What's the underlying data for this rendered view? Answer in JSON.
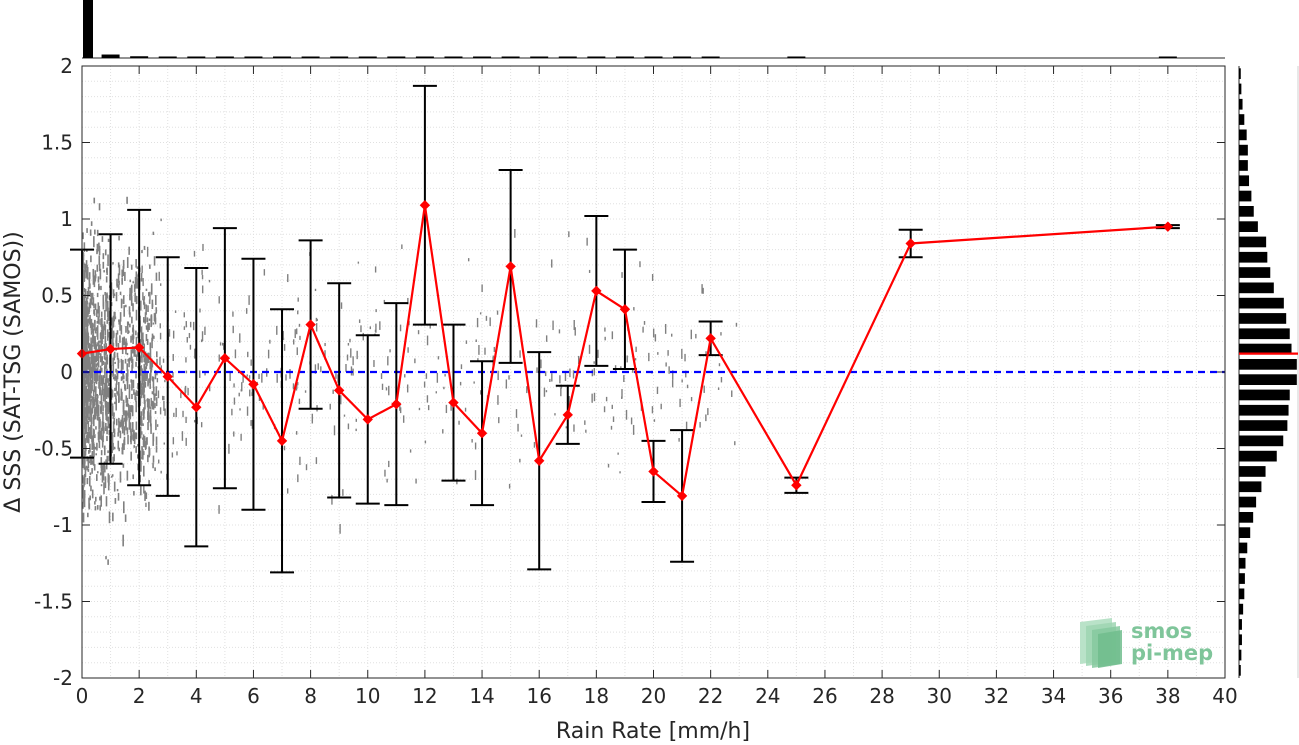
{
  "chart_data": {
    "type": "scatter",
    "xlabel": "Rain Rate [mm/h]",
    "ylabel": "Δ SSS (SAT-TSG (SAMOS))",
    "xlim": [
      0,
      40
    ],
    "ylim": [
      -2,
      2
    ],
    "x_ticks": [
      0,
      2,
      4,
      6,
      8,
      10,
      12,
      14,
      16,
      18,
      20,
      22,
      24,
      26,
      28,
      30,
      32,
      34,
      36,
      38,
      40
    ],
    "y_ticks": [
      -2,
      -1.5,
      -1,
      -0.5,
      0,
      0.5,
      1,
      1.5,
      2
    ],
    "y_tick_labels": [
      "-2",
      "-1.5",
      "-1",
      "-0.5",
      "0",
      "0.5",
      "1",
      "1.5",
      "2"
    ],
    "grid": true,
    "reference_line": {
      "y": 0,
      "color": "#0000ff",
      "style": "dashed"
    },
    "mean_series": {
      "color": "#ff0000",
      "x": [
        0,
        1,
        2,
        3,
        4,
        5,
        6,
        7,
        8,
        9,
        10,
        11,
        12,
        13,
        14,
        15,
        16,
        17,
        18,
        19,
        20,
        21,
        22,
        25,
        29,
        38
      ],
      "y": [
        0.12,
        0.15,
        0.16,
        -0.03,
        -0.23,
        0.09,
        -0.08,
        -0.45,
        0.31,
        -0.12,
        -0.31,
        -0.21,
        1.09,
        -0.2,
        -0.4,
        0.69,
        -0.58,
        -0.28,
        0.53,
        0.41,
        -0.65,
        -0.81,
        0.22,
        -0.74,
        0.84,
        0.95
      ],
      "std": [
        0.68,
        0.75,
        0.9,
        0.78,
        0.91,
        0.85,
        0.82,
        0.86,
        0.55,
        0.7,
        0.55,
        0.66,
        0.78,
        0.51,
        0.47,
        0.63,
        0.71,
        0.19,
        0.49,
        0.39,
        0.2,
        0.43,
        0.11,
        0.05,
        0.09,
        0.01
      ]
    },
    "scatter_color": "#808080",
    "top_histogram": {
      "x": [
        0,
        1,
        2,
        3,
        4,
        5,
        6,
        7,
        8,
        9,
        10,
        11,
        12,
        13,
        14,
        15,
        16,
        17,
        18,
        19,
        20,
        21,
        22,
        25,
        38
      ],
      "counts": [
        1.0,
        0.06,
        0.03,
        0.02,
        0.015,
        0.015,
        0.01,
        0.01,
        0.01,
        0.008,
        0.008,
        0.006,
        0.006,
        0.005,
        0.005,
        0.005,
        0.004,
        0.004,
        0.004,
        0.004,
        0.003,
        0.003,
        0.004,
        0.003,
        0.003
      ]
    },
    "right_histogram": {
      "y_centers": [
        1.95,
        1.85,
        1.75,
        1.65,
        1.55,
        1.45,
        1.35,
        1.25,
        1.15,
        1.05,
        0.95,
        0.85,
        0.75,
        0.65,
        0.55,
        0.45,
        0.35,
        0.25,
        0.15,
        0.05,
        -0.05,
        -0.15,
        -0.25,
        -0.35,
        -0.45,
        -0.55,
        -0.65,
        -0.75,
        -0.85,
        -0.95,
        -1.05,
        -1.15,
        -1.25,
        -1.35,
        -1.45,
        -1.55,
        -1.65,
        -1.75,
        -1.85,
        -1.95
      ],
      "counts": [
        0.03,
        0.04,
        0.06,
        0.09,
        0.13,
        0.15,
        0.15,
        0.17,
        0.21,
        0.25,
        0.32,
        0.46,
        0.48,
        0.53,
        0.59,
        0.76,
        0.8,
        0.86,
        0.89,
        0.98,
        0.98,
        0.86,
        0.84,
        0.82,
        0.75,
        0.64,
        0.45,
        0.38,
        0.29,
        0.24,
        0.19,
        0.14,
        0.11,
        0.1,
        0.09,
        0.07,
        0.05,
        0.05,
        0.04,
        0.03
      ],
      "mean_marker": {
        "y": 0.12,
        "color": "#ff0000"
      }
    }
  },
  "logo": {
    "line1": "smos",
    "line2": "pi-mep"
  }
}
